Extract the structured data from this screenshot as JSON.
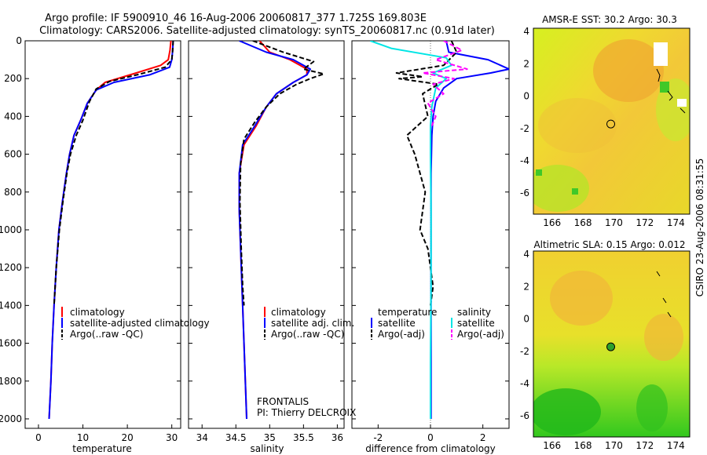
{
  "header": {
    "line1": "Argo profile: IF 5900910_46 16-Aug-2006 20060817_377 1.725S 169.803E",
    "line2": "Climatology: CARS2006. Satellite-adjusted climatology: synTS_20060817.nc (0.91d later)"
  },
  "side_text": "CSIRO 23-Aug-2006 08:31:55",
  "pi_text": {
    "line1": "FRONTALIS",
    "line2": "PI: Thierry DELCROIX"
  },
  "colors": {
    "climatology": "#ff0000",
    "satellite": "#0000ff",
    "argo": "#000000",
    "sat_salinity": "#00e5e5",
    "argo_salinity": "#ff00ff"
  },
  "chart_data": [
    {
      "type": "line",
      "name": "temperature",
      "xlabel": "temperature",
      "ylabel": "",
      "xlim": [
        -3,
        32
      ],
      "ylim": [
        2050,
        0
      ],
      "xticks": [
        0,
        10,
        20,
        30
      ],
      "yticks": [
        0,
        200,
        400,
        600,
        800,
        1000,
        1200,
        1400,
        1600,
        1800,
        2000
      ],
      "legend": [
        "climatology",
        "satellite-adjusted climatology",
        "Argo(..raw -QC)"
      ],
      "series": [
        {
          "name": "climatology",
          "color": "red",
          "dash": false,
          "x": [
            29.8,
            29.6,
            29.2,
            27.5,
            22,
            15,
            13,
            11,
            9.5,
            8,
            7,
            6.3,
            5.4,
            4.6,
            4.0,
            3.5,
            3.1,
            2.8,
            2.4
          ],
          "y": [
            0,
            50,
            100,
            130,
            170,
            220,
            260,
            330,
            420,
            500,
            600,
            700,
            850,
            1000,
            1200,
            1400,
            1600,
            1800,
            2000
          ]
        },
        {
          "name": "satellite-adjusted climatology",
          "color": "blue",
          "dash": false,
          "x": [
            30.3,
            30.2,
            30,
            29.5,
            25,
            17,
            13,
            11,
            9.5,
            8,
            7,
            6.3,
            5.4,
            4.6,
            4.0,
            3.5,
            3.1,
            2.8,
            2.4
          ],
          "y": [
            0,
            50,
            100,
            140,
            180,
            220,
            260,
            330,
            420,
            500,
            600,
            700,
            850,
            1000,
            1200,
            1400,
            1600,
            1800,
            2000
          ]
        },
        {
          "name": "Argo(..raw -QC)",
          "color": "black",
          "dash": true,
          "x": [
            30.3,
            30.2,
            30,
            28.5,
            23,
            16,
            13,
            11.5,
            10,
            8.5,
            7.2,
            6.4,
            5.5,
            4.7,
            4.0,
            3.5
          ],
          "y": [
            0,
            50,
            100,
            140,
            175,
            215,
            255,
            320,
            420,
            500,
            600,
            700,
            850,
            1000,
            1200,
            1400
          ]
        }
      ]
    },
    {
      "type": "line",
      "name": "salinity",
      "xlabel": "salinity",
      "ylabel": "",
      "xlim": [
        33.8,
        36.1
      ],
      "ylim": [
        2050,
        0
      ],
      "xticks": [
        34,
        34.5,
        35,
        35.5,
        36
      ],
      "xtick_labels": [
        "34",
        "34.5",
        "35",
        "35.5",
        "36"
      ],
      "legend": [
        "climatology",
        "satellite adj. clim.",
        "Argo(..raw -QC)"
      ],
      "series": [
        {
          "name": "climatology",
          "color": "red",
          "dash": false,
          "x": [
            34.85,
            35.0,
            35.3,
            35.55,
            35.55,
            35.35,
            35.1,
            34.95,
            34.8,
            34.62,
            34.55,
            34.55,
            34.57,
            34.6,
            34.62,
            34.64,
            34.66
          ],
          "y": [
            0,
            60,
            100,
            150,
            180,
            220,
            280,
            350,
            450,
            550,
            700,
            900,
            1100,
            1400,
            1600,
            1800,
            2000
          ]
        },
        {
          "name": "satellite adj. clim.",
          "color": "blue",
          "dash": false,
          "x": [
            34.55,
            34.95,
            35.35,
            35.6,
            35.55,
            35.35,
            35.1,
            34.95,
            34.78,
            34.6,
            34.55,
            34.55,
            34.57,
            34.6,
            34.62,
            34.64,
            34.66
          ],
          "y": [
            0,
            60,
            100,
            150,
            180,
            220,
            280,
            350,
            450,
            550,
            700,
            900,
            1100,
            1400,
            1600,
            1800,
            2000
          ]
        },
        {
          "name": "Argo(..raw -QC)",
          "color": "black",
          "dash": true,
          "x": [
            34.75,
            35.2,
            35.65,
            35.5,
            35.8,
            35.6,
            35.4,
            35.15,
            34.95,
            34.78,
            34.62,
            34.57,
            34.56,
            34.58,
            34.6,
            34.62
          ],
          "y": [
            0,
            60,
            110,
            150,
            175,
            200,
            230,
            280,
            350,
            430,
            520,
            650,
            850,
            1100,
            1300,
            1400
          ]
        }
      ]
    },
    {
      "type": "line",
      "name": "difference",
      "xlabel": "difference from climatology",
      "ylabel": "",
      "xlim": [
        -3,
        3
      ],
      "ylim": [
        2050,
        0
      ],
      "xticks": [
        -2,
        0,
        2
      ],
      "legend_temperature": {
        "title": "temperature",
        "items": [
          "satellite",
          "Argo(-adj)"
        ]
      },
      "legend_salinity": {
        "title": "salinity",
        "items": [
          "satellite",
          "Argo(-adj)"
        ]
      },
      "series": [
        {
          "name": "temperature satellite",
          "color": "blue",
          "dash": false,
          "x": [
            0.6,
            0.7,
            2.2,
            3.0,
            2.3,
            1.0,
            0.5,
            0.2,
            0.1,
            0.05,
            0.02,
            0.02,
            0.02,
            0.02,
            0.02
          ],
          "y": [
            0,
            60,
            100,
            150,
            170,
            200,
            250,
            320,
            400,
            500,
            700,
            1000,
            1400,
            1700,
            2000
          ]
        },
        {
          "name": "temperature Argo(-adj)",
          "color": "black",
          "dash": true,
          "x": [
            0.8,
            1.0,
            0.5,
            -1.3,
            -0.3,
            -1.2,
            0.3,
            -0.3,
            -0.1,
            -0.9,
            -0.6,
            -0.2,
            -0.3,
            -0.4,
            -0.1,
            0.1,
            0.0
          ],
          "y": [
            0,
            60,
            130,
            170,
            190,
            200,
            230,
            280,
            400,
            500,
            600,
            800,
            900,
            1000,
            1100,
            1300,
            1400
          ]
        },
        {
          "name": "salinity satellite",
          "color": "cyan",
          "dash": false,
          "x": [
            -2.3,
            -1.5,
            0.6,
            0.8,
            0.1,
            0.6,
            0.2,
            0.05,
            0.0,
            0.0,
            0.02,
            0.02,
            0.0,
            0.0
          ],
          "y": [
            0,
            40,
            90,
            130,
            170,
            200,
            250,
            350,
            450,
            600,
            900,
            1300,
            1700,
            2000
          ]
        },
        {
          "name": "salinity Argo(-adj)",
          "color": "magenta",
          "dash": true,
          "x": [
            0.5,
            1.2,
            0.2,
            1.4,
            -0.3,
            0.9,
            0.1,
            0.5,
            -0.1,
            0.2,
            0.05
          ],
          "y": [
            0,
            50,
            100,
            150,
            170,
            200,
            230,
            280,
            330,
            400,
            450
          ]
        }
      ]
    },
    {
      "type": "heatmap",
      "name": "sst_map",
      "title": "AMSR-E SST: 30.2 Argo: 30.3",
      "xlim": [
        164.8,
        174.9
      ],
      "ylim": [
        -7.3,
        4.2
      ],
      "xticks": [
        166,
        168,
        170,
        172,
        174
      ],
      "yticks": [
        4,
        2,
        0,
        -2,
        -4,
        -6
      ],
      "argo_marker": {
        "lon": 169.8,
        "lat": -1.725,
        "filled": false
      }
    },
    {
      "type": "heatmap",
      "name": "sla_map",
      "title": "Altimetric SLA: 0.15 Argo: 0.012",
      "xlim": [
        164.8,
        174.9
      ],
      "ylim": [
        -7.3,
        4.2
      ],
      "xticks": [
        166,
        168,
        170,
        172,
        174
      ],
      "yticks": [
        4,
        2,
        0,
        -2,
        -4,
        -6
      ],
      "argo_marker": {
        "lon": 169.8,
        "lat": -1.725,
        "filled": true
      }
    }
  ]
}
